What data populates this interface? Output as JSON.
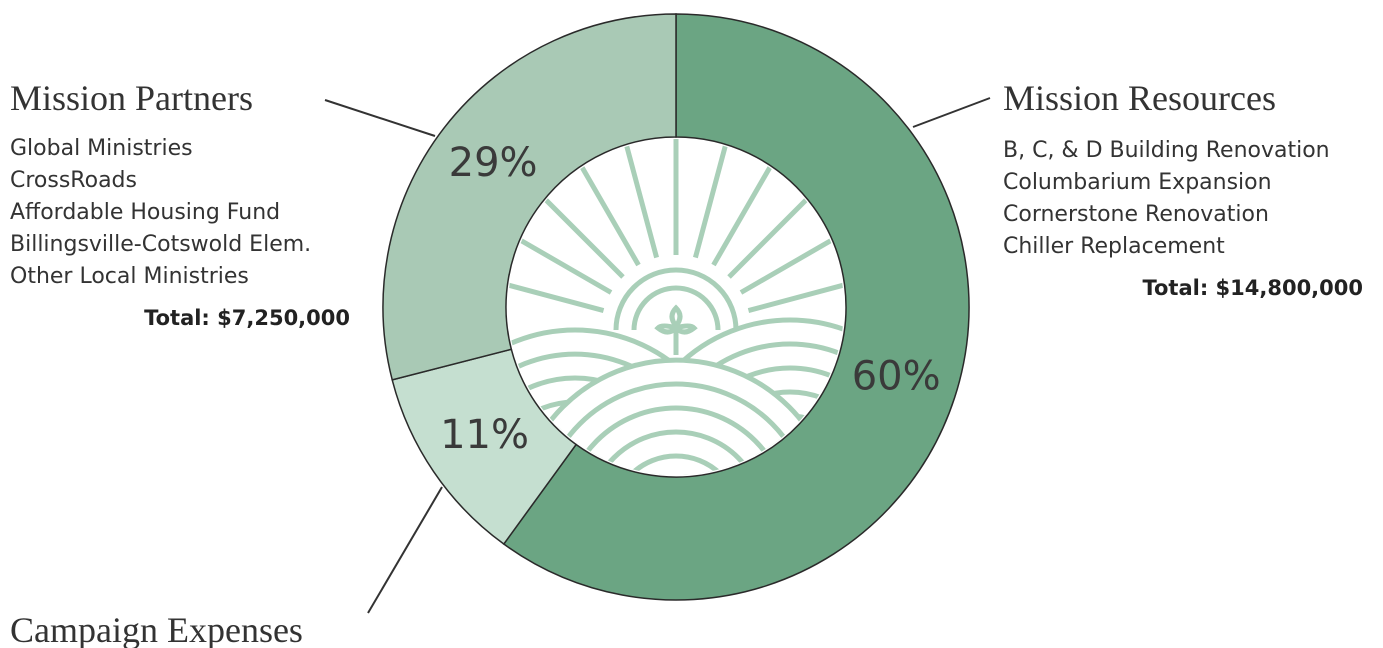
{
  "chart_data": {
    "type": "donut",
    "categories": [
      "Mission Resources",
      "Campaign Expenses",
      "Mission Partners"
    ],
    "values": [
      60,
      11,
      29
    ],
    "value_labels": [
      "60%",
      "11%",
      "29%"
    ],
    "colors": [
      "#6ba583",
      "#c5dfd0",
      "#a9c9b5"
    ],
    "annotations": [
      {
        "items": [
          "B, C, & D Building Renovation",
          "Columbarium Expansion",
          "Cornerstone Renovation",
          "Chiller Replacement"
        ],
        "total": "Total: $14,800,000"
      },
      {
        "items": [
          "Global Ministries",
          "CrossRoads",
          "Affordable Housing Fund",
          "Billingsville-Cotswold Elem.",
          "Other Local Ministries"
        ],
        "total": "Total: $7,250,000"
      }
    ]
  }
}
